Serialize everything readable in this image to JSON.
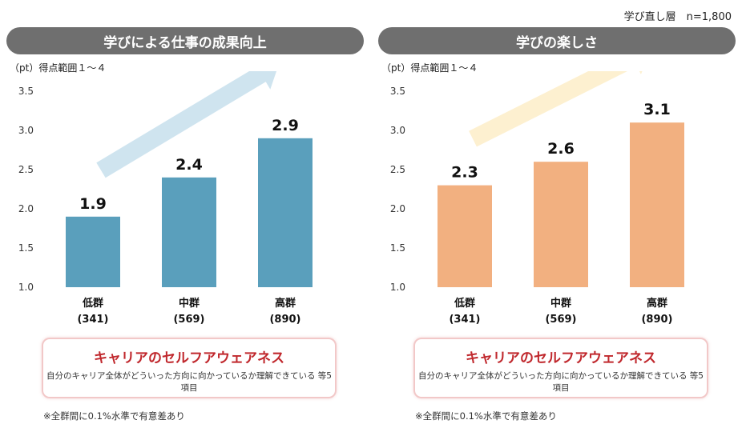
{
  "header_note": "学び直し層　n=1,800",
  "chart_data": [
    {
      "type": "bar",
      "title": "学びによる仕事の成果向上",
      "ylabel": "（pt）得点範囲１～４",
      "categories": [
        "低群",
        "中群",
        "高群"
      ],
      "category_counts": [
        "(341)",
        "(569)",
        "(890)"
      ],
      "values": [
        1.9,
        2.4,
        2.9
      ],
      "ylim": [
        1.0,
        3.5
      ],
      "yticks": [
        "1.0",
        "1.5",
        "2.0",
        "2.5",
        "3.0",
        "3.5"
      ],
      "bar_color": "#5a9fbc",
      "arrow_color": "#cfe4ef",
      "grid": false,
      "callout": {
        "title": "キャリアのセルフアウェアネス",
        "subtitle": "自分のキャリア全体がどういった方向に向かっているか理解できている 等5項目"
      },
      "footnote": "※全群間に0.1%水準で有意差あり"
    },
    {
      "type": "bar",
      "title": "学びの楽しさ",
      "ylabel": "（pt）得点範囲１～４",
      "categories": [
        "低群",
        "中群",
        "高群"
      ],
      "category_counts": [
        "(341)",
        "(569)",
        "(890)"
      ],
      "values": [
        2.3,
        2.6,
        3.1
      ],
      "ylim": [
        1.0,
        3.5
      ],
      "yticks": [
        "1.0",
        "1.5",
        "2.0",
        "2.5",
        "3.0",
        "3.5"
      ],
      "bar_color": "#f2b080",
      "arrow_color": "#fdf0d0",
      "grid": false,
      "callout": {
        "title": "キャリアのセルフアウェアネス",
        "subtitle": "自分のキャリア全体がどういった方向に向かっているか理解できている 等5項目"
      },
      "footnote": "※全群間に0.1%水準で有意差あり"
    }
  ]
}
